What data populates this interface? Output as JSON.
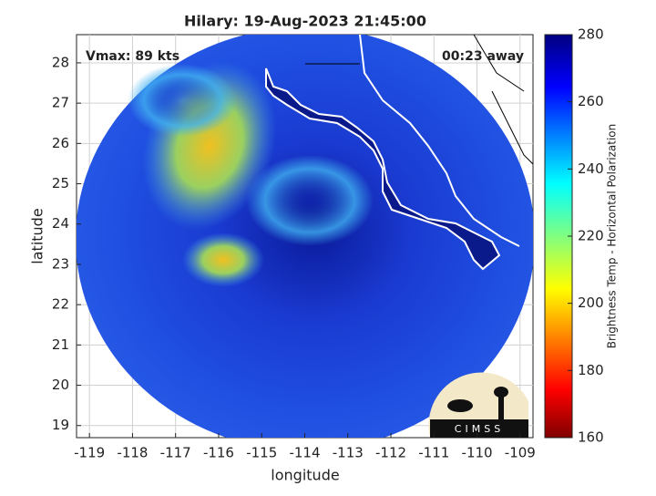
{
  "chart_data": {
    "type": "map",
    "title": "Hilary: 19-Aug-2023 21:45:00",
    "xlabel": "longitude",
    "ylabel": "latitude",
    "annotations": [
      "Vmax: 89 kts",
      "00:23 away"
    ],
    "logo": "CIMSS",
    "xlim": [
      -119.3,
      -108.7
    ],
    "xticks": [
      -119,
      -118,
      -117,
      -116,
      -115,
      -114,
      -113,
      -112,
      -111,
      -110,
      -109
    ],
    "ylim": [
      18.7,
      28.7
    ],
    "yticks": [
      19,
      20,
      21,
      22,
      23,
      24,
      25,
      26,
      27,
      28
    ],
    "grid": true,
    "colorbar": {
      "label": "Brightness Temp - Horizontal Polarization",
      "clim": [
        160,
        280
      ],
      "ticks": [
        160,
        180,
        200,
        220,
        240,
        260,
        280
      ]
    }
  }
}
